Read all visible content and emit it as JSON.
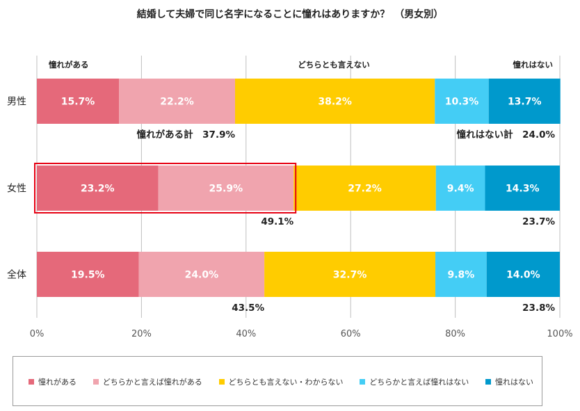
{
  "title": "結婚して夫婦で同じ名字になることに憧れはありますか？　（男女別）",
  "colors": {
    "s1": "#e5697a",
    "s2": "#f0a4ae",
    "s3": "#ffcc00",
    "s4": "#44cdf5",
    "s5": "#0099cc",
    "highlight": "#e60012",
    "grid": "#bfbfbf"
  },
  "chart_data": {
    "type": "bar",
    "orientation": "horizontal",
    "stacked": true,
    "percent_stacked": true,
    "categories": [
      "男性",
      "女性",
      "全体"
    ],
    "series": [
      {
        "name": "憧れがある",
        "values": [
          15.7,
          23.2,
          19.5
        ]
      },
      {
        "name": "どちらかと言えば憧れがある",
        "values": [
          22.2,
          25.9,
          24.0
        ]
      },
      {
        "name": "どちらとも言えない・わからない",
        "values": [
          38.2,
          27.2,
          32.7
        ]
      },
      {
        "name": "どちらかと言えば憧れはない",
        "values": [
          10.3,
          9.4,
          9.8
        ]
      },
      {
        "name": "憧れはない",
        "values": [
          13.7,
          14.3,
          14.0
        ]
      }
    ],
    "xlim": [
      0,
      100
    ],
    "x_ticks": [
      "0%",
      "20%",
      "40%",
      "60%",
      "80%",
      "100%"
    ],
    "grid": true,
    "legend_position": "bottom",
    "group_headers": [
      "憧れがある",
      "どちらとも言えない",
      "憧れはない"
    ],
    "sum_labels": {
      "positive": [
        "憧れがある計　37.9%",
        "49.1%",
        "43.5%"
      ],
      "negative": [
        "憧れはない計　24.0%",
        "23.7%",
        "23.8%"
      ]
    },
    "highlighted_category": "女性"
  }
}
